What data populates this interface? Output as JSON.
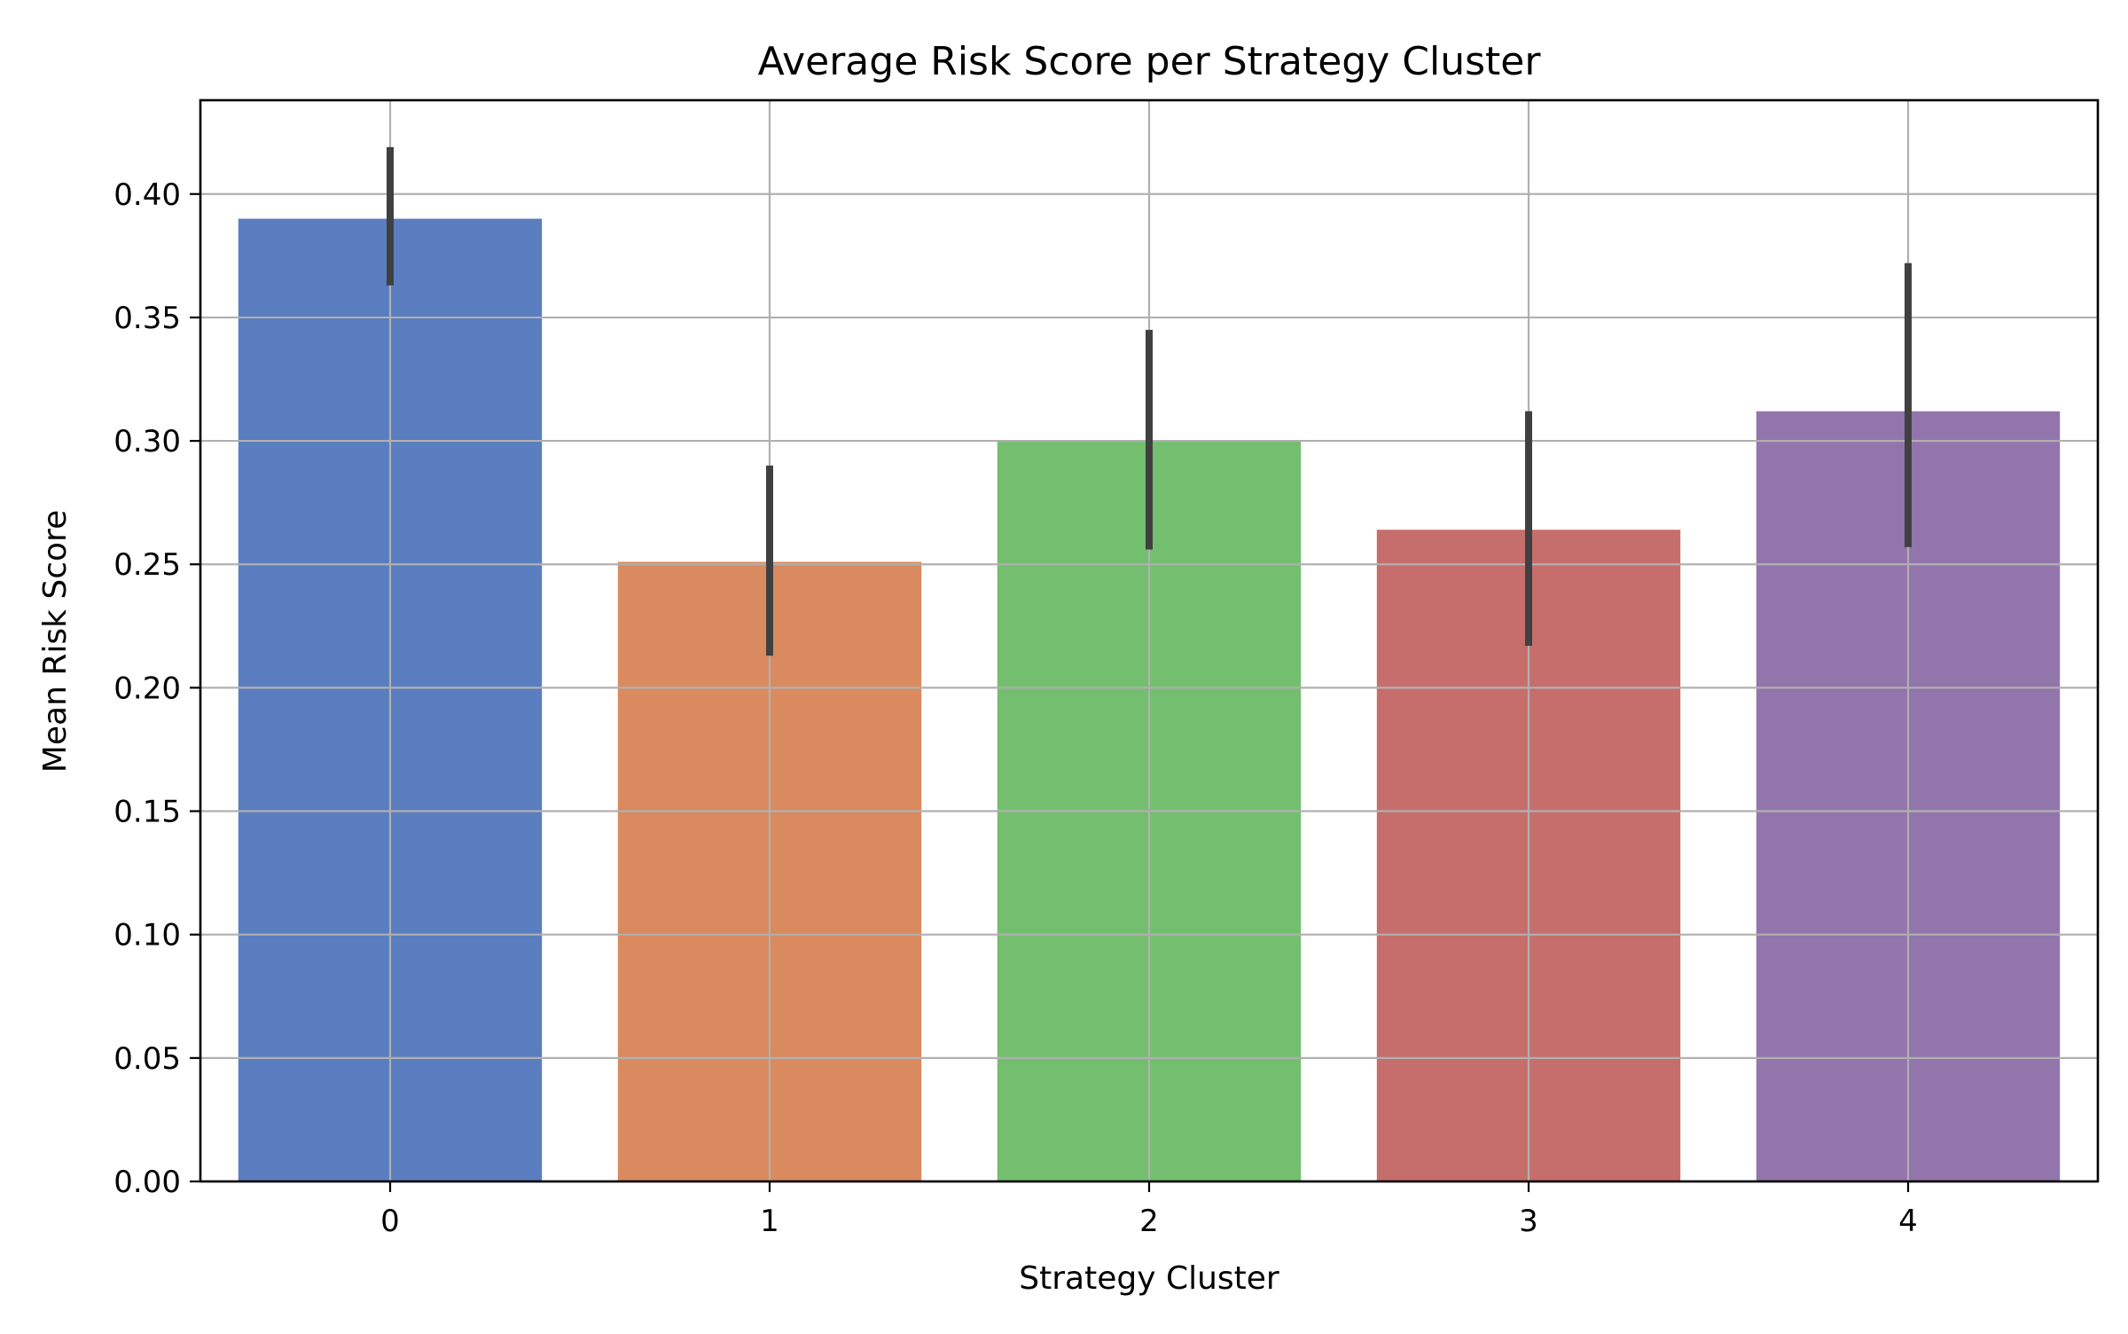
{
  "chart_data": {
    "type": "bar",
    "title": "Average Risk Score per Strategy Cluster",
    "xlabel": "Strategy Cluster",
    "ylabel": "Mean Risk Score",
    "categories": [
      "0",
      "1",
      "2",
      "3",
      "4"
    ],
    "values": [
      0.39,
      0.251,
      0.3,
      0.264,
      0.312
    ],
    "error_low": [
      0.363,
      0.213,
      0.256,
      0.217,
      0.257
    ],
    "error_high": [
      0.419,
      0.29,
      0.345,
      0.312,
      0.372
    ],
    "colors": [
      "#5a7dbf",
      "#d98a5f",
      "#73bf6f",
      "#c66e6c",
      "#9275ab"
    ],
    "error_color": "#404040",
    "ylim": [
      0,
      0.438
    ],
    "yticks": [
      "0.00",
      "0.05",
      "0.10",
      "0.15",
      "0.20",
      "0.25",
      "0.30",
      "0.35",
      "0.40"
    ],
    "grid": true,
    "legend": "none"
  }
}
